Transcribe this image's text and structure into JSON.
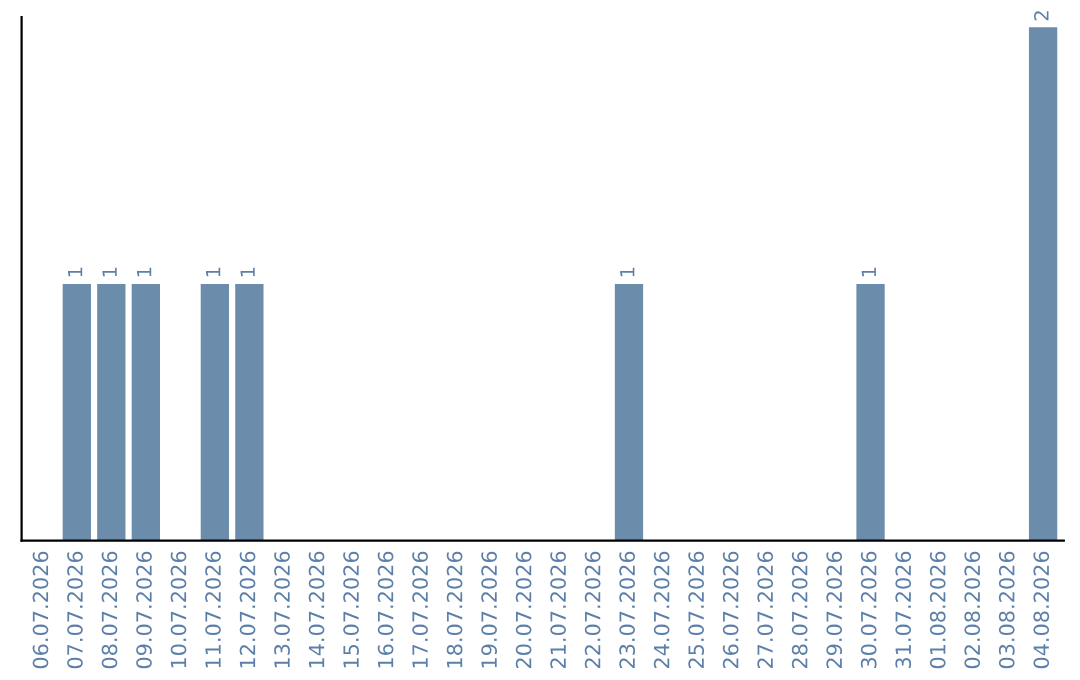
{
  "chart_data": {
    "type": "bar",
    "categories": [
      "06.07.2026",
      "07.07.2026",
      "08.07.2026",
      "09.07.2026",
      "10.07.2026",
      "11.07.2026",
      "12.07.2026",
      "13.07.2026",
      "14.07.2026",
      "15.07.2026",
      "16.07.2026",
      "17.07.2026",
      "18.07.2026",
      "19.07.2026",
      "20.07.2026",
      "21.07.2026",
      "22.07.2026",
      "23.07.2026",
      "24.07.2026",
      "25.07.2026",
      "26.07.2026",
      "27.07.2026",
      "28.07.2026",
      "29.07.2026",
      "30.07.2026",
      "31.07.2026",
      "01.08.2026",
      "02.08.2026",
      "03.08.2026",
      "04.08.2026"
    ],
    "values": [
      0,
      1,
      1,
      1,
      0,
      1,
      1,
      0,
      0,
      0,
      0,
      0,
      0,
      0,
      0,
      0,
      0,
      1,
      0,
      0,
      0,
      0,
      0,
      0,
      1,
      0,
      0,
      0,
      0,
      2
    ],
    "value_labels": [
      null,
      "1",
      "1",
      "1",
      null,
      "1",
      "1",
      null,
      null,
      null,
      null,
      null,
      null,
      null,
      null,
      null,
      null,
      "1",
      null,
      null,
      null,
      null,
      null,
      null,
      "1",
      null,
      null,
      null,
      null,
      "2"
    ],
    "color": "#6b8cab",
    "tick_labels": "x",
    "grid": false,
    "legend": false
  }
}
